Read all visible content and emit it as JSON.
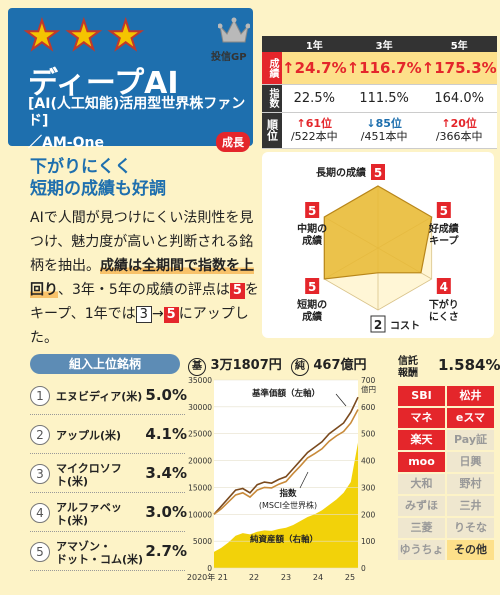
{
  "header": {
    "stars": [
      "★",
      "★",
      "★"
    ],
    "crown_label": "投信GP",
    "title": "ディープAI",
    "subtitle": "[AI(人工知能)活用型世界株ファンド]",
    "company": "／AM-One",
    "category_badge": "成長"
  },
  "stats": {
    "columns": [
      "1年",
      "3年",
      "5年"
    ],
    "performance_label": "成績",
    "performance": [
      "↑24.7%",
      "↑116.7%",
      "↑175.3%"
    ],
    "index_label": "指数",
    "index": [
      "22.5%",
      "111.5%",
      "164.0%"
    ],
    "rank_label": "順位",
    "ranks": [
      {
        "arrow": "↑",
        "rank": "61位",
        "total": "/522本中",
        "dir": "up"
      },
      {
        "arrow": "↓",
        "rank": "85位",
        "total": "/451本中",
        "dir": "down"
      },
      {
        "arrow": "↑",
        "rank": "20位",
        "total": "/366本中",
        "dir": "up"
      }
    ]
  },
  "commentary": {
    "headline1": "下がりにくく",
    "headline2": "短期の成績も好調",
    "text1": "AIで人間が見つけにくい法則性を見つけ、魅力度が高いと判断される銘柄を抽出。",
    "highlight": "成績は全期間で指数を上回り",
    "text2": "、3年・5年の成績の評点は",
    "score_a": "5",
    "text3": "をキープ、1年では",
    "score_old": "3",
    "arrow": "→",
    "score_new": "5",
    "text4": "にアップした。"
  },
  "radar": {
    "axes": [
      {
        "label": "長期の成績",
        "score": "5"
      },
      {
        "label": "好成績キープ",
        "score": "5"
      },
      {
        "label": "下がりにくさ",
        "score": "4"
      },
      {
        "label": "コスト",
        "score": "2"
      },
      {
        "label": "短期の成績",
        "score": "5"
      },
      {
        "label": "中期の成績",
        "score": "5"
      }
    ]
  },
  "holdings": {
    "title": "組入上位銘柄",
    "items": [
      {
        "num": "1",
        "name": "エヌビディア(米)",
        "pct": "5.0%"
      },
      {
        "num": "2",
        "name": "アップル(米)",
        "pct": "4.1%"
      },
      {
        "num": "3",
        "name": "マイクロソフト(米)",
        "pct": "3.4%"
      },
      {
        "num": "4",
        "name": "アルファベット(米)",
        "pct": "3.0%"
      },
      {
        "num": "5",
        "name": "アマゾン・ドット・コム(米)",
        "pct": "2.7%"
      }
    ]
  },
  "nav": {
    "base_mark": "基",
    "base_value": "3万1807円",
    "net_mark": "純",
    "net_value": "467億円"
  },
  "fee": {
    "label": "信託報酬",
    "value": "1.584%"
  },
  "brokers": [
    {
      "name": "SBI",
      "state": "on"
    },
    {
      "name": "松井",
      "state": "on"
    },
    {
      "name": "マネ",
      "state": "on"
    },
    {
      "name": "eスマ",
      "state": "on"
    },
    {
      "name": "楽天",
      "state": "on"
    },
    {
      "name": "Pay証",
      "state": "off"
    },
    {
      "name": "moo",
      "state": "on"
    },
    {
      "name": "日興",
      "state": "off"
    },
    {
      "name": "大和",
      "state": "off"
    },
    {
      "name": "野村",
      "state": "off"
    },
    {
      "name": "みずほ",
      "state": "off"
    },
    {
      "name": "三井",
      "state": "off"
    },
    {
      "name": "三菱",
      "state": "off"
    },
    {
      "name": "りそな",
      "state": "off"
    },
    {
      "name": "ゆうちょ",
      "state": "off"
    },
    {
      "name": "その他",
      "state": "other"
    }
  ],
  "chart_data": {
    "type": "line",
    "x_ticks": [
      "2020年 21",
      "22",
      "23",
      "24",
      "25"
    ],
    "y_left_ticks": [
      "35000",
      "30000",
      "25000",
      "20000",
      "15000",
      "10000",
      "5000",
      "0"
    ],
    "y_right_ticks": [
      "700",
      "600",
      "500",
      "400",
      "300",
      "200",
      "100",
      "0"
    ],
    "y_right_unit": "億円",
    "ylim_left": [
      0,
      35000
    ],
    "ylim_right": [
      0,
      700
    ],
    "annotations": {
      "base_price": "基準価額（左軸）",
      "index": "指数",
      "index_sub": "(MSCI全世界株)",
      "net_assets": "純資産額（右軸）"
    },
    "series": [
      {
        "name": "基準価額",
        "axis": "left",
        "color": "#7a4a1e",
        "values": [
          10000,
          11500,
          13000,
          14500,
          14800,
          14000,
          15500,
          16000,
          15800,
          16500,
          17000,
          18500,
          20000,
          21500,
          22500,
          23500,
          25000,
          26000,
          27000,
          29000,
          31800
        ]
      },
      {
        "name": "指数",
        "axis": "left",
        "color": "#c88a3a",
        "values": [
          10000,
          11000,
          12300,
          13600,
          14000,
          13200,
          14500,
          15000,
          14900,
          15600,
          16100,
          17600,
          19000,
          20500,
          21300,
          22200,
          23600,
          24600,
          25400,
          27000,
          29500
        ]
      },
      {
        "name": "純資産額",
        "axis": "right",
        "color": "#f2d20a",
        "values": [
          60,
          75,
          95,
          120,
          130,
          125,
          135,
          140,
          138,
          145,
          150,
          160,
          175,
          190,
          200,
          215,
          235,
          255,
          280,
          320,
          467
        ]
      }
    ]
  }
}
